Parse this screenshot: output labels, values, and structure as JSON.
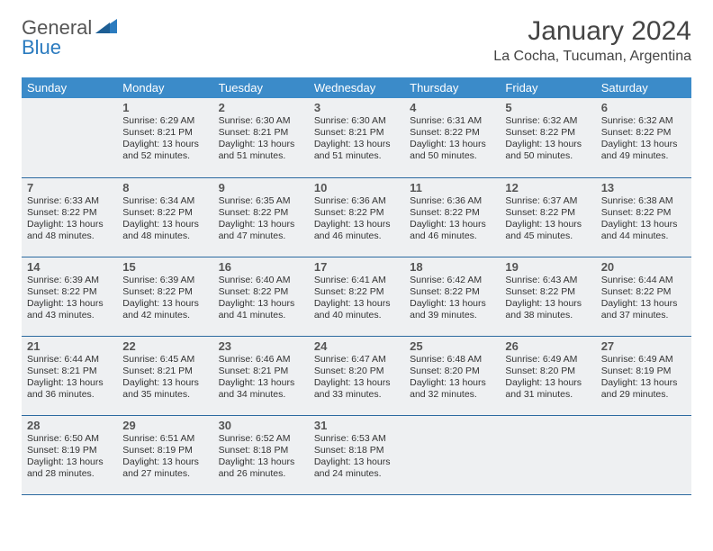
{
  "brand": {
    "word1": "General",
    "word2": "Blue"
  },
  "title": "January 2024",
  "location": "La Cocha, Tucuman, Argentina",
  "colors": {
    "header_bg": "#3b8bc9",
    "header_text": "#ffffff",
    "cell_bg": "#eef0f2",
    "row_border": "#2b6aa0",
    "text": "#333333",
    "brand_gray": "#555555",
    "brand_blue": "#2b7bbf"
  },
  "weekdays": [
    "Sunday",
    "Monday",
    "Tuesday",
    "Wednesday",
    "Thursday",
    "Friday",
    "Saturday"
  ],
  "weeks": [
    [
      null,
      {
        "n": "1",
        "sr": "Sunrise: 6:29 AM",
        "ss": "Sunset: 8:21 PM",
        "d1": "Daylight: 13 hours",
        "d2": "and 52 minutes."
      },
      {
        "n": "2",
        "sr": "Sunrise: 6:30 AM",
        "ss": "Sunset: 8:21 PM",
        "d1": "Daylight: 13 hours",
        "d2": "and 51 minutes."
      },
      {
        "n": "3",
        "sr": "Sunrise: 6:30 AM",
        "ss": "Sunset: 8:21 PM",
        "d1": "Daylight: 13 hours",
        "d2": "and 51 minutes."
      },
      {
        "n": "4",
        "sr": "Sunrise: 6:31 AM",
        "ss": "Sunset: 8:22 PM",
        "d1": "Daylight: 13 hours",
        "d2": "and 50 minutes."
      },
      {
        "n": "5",
        "sr": "Sunrise: 6:32 AM",
        "ss": "Sunset: 8:22 PM",
        "d1": "Daylight: 13 hours",
        "d2": "and 50 minutes."
      },
      {
        "n": "6",
        "sr": "Sunrise: 6:32 AM",
        "ss": "Sunset: 8:22 PM",
        "d1": "Daylight: 13 hours",
        "d2": "and 49 minutes."
      }
    ],
    [
      {
        "n": "7",
        "sr": "Sunrise: 6:33 AM",
        "ss": "Sunset: 8:22 PM",
        "d1": "Daylight: 13 hours",
        "d2": "and 48 minutes."
      },
      {
        "n": "8",
        "sr": "Sunrise: 6:34 AM",
        "ss": "Sunset: 8:22 PM",
        "d1": "Daylight: 13 hours",
        "d2": "and 48 minutes."
      },
      {
        "n": "9",
        "sr": "Sunrise: 6:35 AM",
        "ss": "Sunset: 8:22 PM",
        "d1": "Daylight: 13 hours",
        "d2": "and 47 minutes."
      },
      {
        "n": "10",
        "sr": "Sunrise: 6:36 AM",
        "ss": "Sunset: 8:22 PM",
        "d1": "Daylight: 13 hours",
        "d2": "and 46 minutes."
      },
      {
        "n": "11",
        "sr": "Sunrise: 6:36 AM",
        "ss": "Sunset: 8:22 PM",
        "d1": "Daylight: 13 hours",
        "d2": "and 46 minutes."
      },
      {
        "n": "12",
        "sr": "Sunrise: 6:37 AM",
        "ss": "Sunset: 8:22 PM",
        "d1": "Daylight: 13 hours",
        "d2": "and 45 minutes."
      },
      {
        "n": "13",
        "sr": "Sunrise: 6:38 AM",
        "ss": "Sunset: 8:22 PM",
        "d1": "Daylight: 13 hours",
        "d2": "and 44 minutes."
      }
    ],
    [
      {
        "n": "14",
        "sr": "Sunrise: 6:39 AM",
        "ss": "Sunset: 8:22 PM",
        "d1": "Daylight: 13 hours",
        "d2": "and 43 minutes."
      },
      {
        "n": "15",
        "sr": "Sunrise: 6:39 AM",
        "ss": "Sunset: 8:22 PM",
        "d1": "Daylight: 13 hours",
        "d2": "and 42 minutes."
      },
      {
        "n": "16",
        "sr": "Sunrise: 6:40 AM",
        "ss": "Sunset: 8:22 PM",
        "d1": "Daylight: 13 hours",
        "d2": "and 41 minutes."
      },
      {
        "n": "17",
        "sr": "Sunrise: 6:41 AM",
        "ss": "Sunset: 8:22 PM",
        "d1": "Daylight: 13 hours",
        "d2": "and 40 minutes."
      },
      {
        "n": "18",
        "sr": "Sunrise: 6:42 AM",
        "ss": "Sunset: 8:22 PM",
        "d1": "Daylight: 13 hours",
        "d2": "and 39 minutes."
      },
      {
        "n": "19",
        "sr": "Sunrise: 6:43 AM",
        "ss": "Sunset: 8:22 PM",
        "d1": "Daylight: 13 hours",
        "d2": "and 38 minutes."
      },
      {
        "n": "20",
        "sr": "Sunrise: 6:44 AM",
        "ss": "Sunset: 8:22 PM",
        "d1": "Daylight: 13 hours",
        "d2": "and 37 minutes."
      }
    ],
    [
      {
        "n": "21",
        "sr": "Sunrise: 6:44 AM",
        "ss": "Sunset: 8:21 PM",
        "d1": "Daylight: 13 hours",
        "d2": "and 36 minutes."
      },
      {
        "n": "22",
        "sr": "Sunrise: 6:45 AM",
        "ss": "Sunset: 8:21 PM",
        "d1": "Daylight: 13 hours",
        "d2": "and 35 minutes."
      },
      {
        "n": "23",
        "sr": "Sunrise: 6:46 AM",
        "ss": "Sunset: 8:21 PM",
        "d1": "Daylight: 13 hours",
        "d2": "and 34 minutes."
      },
      {
        "n": "24",
        "sr": "Sunrise: 6:47 AM",
        "ss": "Sunset: 8:20 PM",
        "d1": "Daylight: 13 hours",
        "d2": "and 33 minutes."
      },
      {
        "n": "25",
        "sr": "Sunrise: 6:48 AM",
        "ss": "Sunset: 8:20 PM",
        "d1": "Daylight: 13 hours",
        "d2": "and 32 minutes."
      },
      {
        "n": "26",
        "sr": "Sunrise: 6:49 AM",
        "ss": "Sunset: 8:20 PM",
        "d1": "Daylight: 13 hours",
        "d2": "and 31 minutes."
      },
      {
        "n": "27",
        "sr": "Sunrise: 6:49 AM",
        "ss": "Sunset: 8:19 PM",
        "d1": "Daylight: 13 hours",
        "d2": "and 29 minutes."
      }
    ],
    [
      {
        "n": "28",
        "sr": "Sunrise: 6:50 AM",
        "ss": "Sunset: 8:19 PM",
        "d1": "Daylight: 13 hours",
        "d2": "and 28 minutes."
      },
      {
        "n": "29",
        "sr": "Sunrise: 6:51 AM",
        "ss": "Sunset: 8:19 PM",
        "d1": "Daylight: 13 hours",
        "d2": "and 27 minutes."
      },
      {
        "n": "30",
        "sr": "Sunrise: 6:52 AM",
        "ss": "Sunset: 8:18 PM",
        "d1": "Daylight: 13 hours",
        "d2": "and 26 minutes."
      },
      {
        "n": "31",
        "sr": "Sunrise: 6:53 AM",
        "ss": "Sunset: 8:18 PM",
        "d1": "Daylight: 13 hours",
        "d2": "and 24 minutes."
      },
      null,
      null,
      null
    ]
  ]
}
